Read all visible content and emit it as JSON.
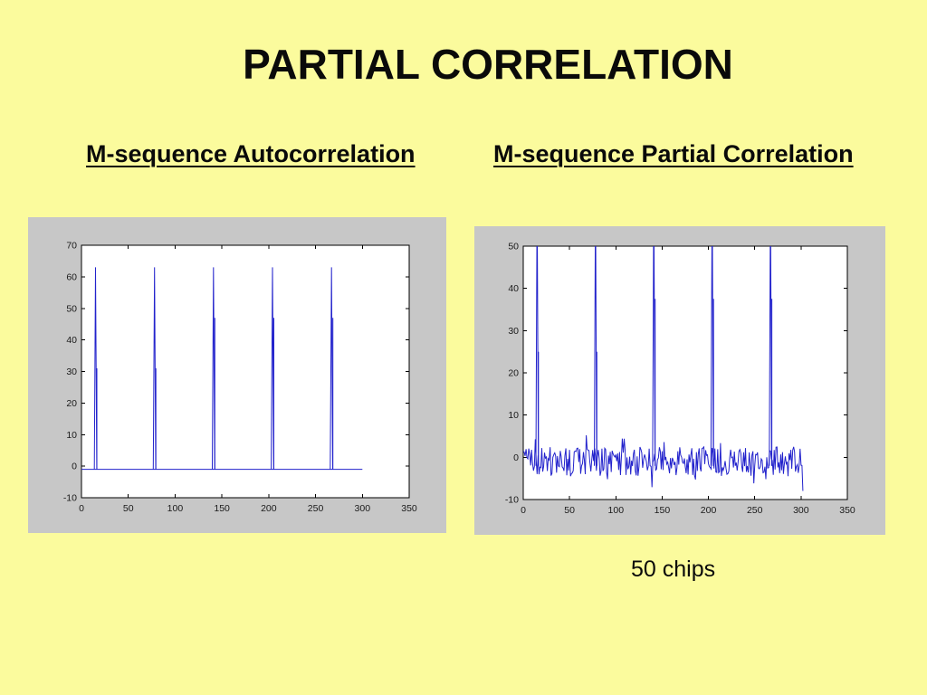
{
  "slide": {
    "title": "PARTIAL CORRELATION",
    "caption": "50 chips",
    "background_color": "#FBFB9D",
    "text_color": "#0A0A0A"
  },
  "chart_data": [
    {
      "id": 0,
      "type": "line",
      "title": "M-sequence Autocorrelation",
      "xlabel": "",
      "ylabel": "",
      "xlim": [
        0,
        350
      ],
      "ylim": [
        -10,
        70
      ],
      "xticks": [
        0,
        50,
        100,
        150,
        200,
        250,
        300,
        350
      ],
      "yticks": [
        70,
        60,
        50,
        40,
        30,
        20,
        10,
        0,
        -10
      ],
      "grid": false,
      "legend": null,
      "panel_color": "#C7C7C7",
      "plot_bg": "#FFFFFF",
      "axis_color": "#000000",
      "line_color": "#2222CC",
      "baseline": -1,
      "x_end": 300,
      "period": 63,
      "peak_value": 63,
      "spike_halfwidth": 1.3,
      "spikes": [
        {
          "x": 15,
          "peak": 63,
          "echo": 31
        },
        {
          "x": 78,
          "peak": 63,
          "echo": 31
        },
        {
          "x": 141,
          "peak": 63,
          "echo": 47
        },
        {
          "x": 204,
          "peak": 63,
          "echo": 47
        },
        {
          "x": 267,
          "peak": 63,
          "echo": 47
        }
      ]
    },
    {
      "id": 1,
      "type": "line",
      "title": "M-sequence Partial Correlation",
      "xlabel": "",
      "ylabel": "",
      "xlim": [
        0,
        350
      ],
      "ylim": [
        -10,
        50
      ],
      "xticks": [
        0,
        50,
        100,
        150,
        200,
        250,
        300,
        350
      ],
      "yticks": [
        50,
        40,
        30,
        20,
        10,
        0,
        -10
      ],
      "grid": false,
      "legend": null,
      "panel_color": "#C7C7C7",
      "plot_bg": "#FFFFFF",
      "axis_color": "#000000",
      "line_color": "#2222CC",
      "baseline": null,
      "spike_base": -2,
      "x_end": 302,
      "period": 63,
      "peak_value": 63,
      "clipped_at": 50,
      "spike_halfwidth": 1.3,
      "spikes": [
        {
          "x": 15,
          "peak": 63,
          "echo": 25
        },
        {
          "x": 78,
          "peak": 63,
          "echo": 25
        },
        {
          "x": 141,
          "peak": 63,
          "echo": 37.5
        },
        {
          "x": 204,
          "peak": 63,
          "echo": 37.5
        },
        {
          "x": 267,
          "peak": 63,
          "echo": 37.5
        }
      ],
      "noise": {
        "seed": 9,
        "step": 1,
        "center": -1,
        "spread_small": 3.5,
        "spread_large": 7,
        "outlier_prob": 0.13,
        "range": [
          -8,
          6
        ]
      }
    }
  ]
}
